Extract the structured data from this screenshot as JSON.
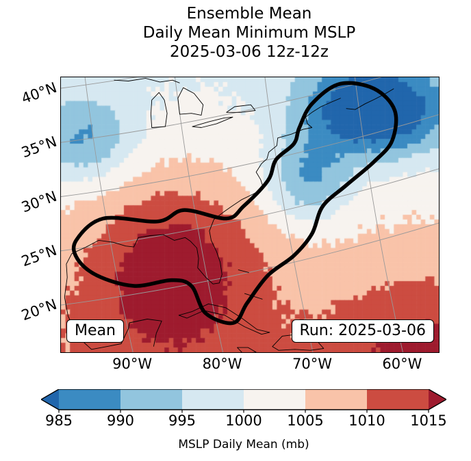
{
  "title_lines": [
    "Ensemble Mean",
    "Daily Mean Minimum MSLP",
    "2025-03-06 12z-12z"
  ],
  "boxes": {
    "mean": "Mean",
    "run": "Run: 2025-03-06"
  },
  "colorbar": {
    "label": "MSLP Daily Mean (mb)",
    "ticks": [
      "985",
      "990",
      "995",
      "1000",
      "1005",
      "1010",
      "1015"
    ],
    "extend": "both"
  },
  "chart_data": {
    "type": "heatmap",
    "subtype": "filled-contour-weather-map",
    "title": "Ensemble Mean Daily Mean Minimum MSLP",
    "valid_period": "2025-03-06 12z-12z",
    "run_date": "2025-03-06",
    "statistic": "Mean",
    "variable": "MSLP Daily Mean",
    "units": "mb",
    "colormap": "RdBu_r",
    "levels": [
      985,
      990,
      995,
      1000,
      1005,
      1010,
      1015
    ],
    "colors": [
      "#2166ac",
      "#3b8bc2",
      "#92c5de",
      "#d6e8f1",
      "#f7f3ef",
      "#f9c3a9",
      "#cc4c41",
      "#9e1b2e"
    ],
    "extent": {
      "lon_min": -98,
      "lon_max": -56,
      "lat_min": 18,
      "lat_max": 47
    },
    "grid_resolution_deg": 0.5,
    "lat_ticks": [
      {
        "value": 40,
        "label": "40°N"
      },
      {
        "value": 35,
        "label": "35°N"
      },
      {
        "value": 30,
        "label": "30°N"
      },
      {
        "value": 25,
        "label": "25°N"
      },
      {
        "value": 20,
        "label": "20°N"
      }
    ],
    "lon_ticks": [
      {
        "value": -90,
        "label": "90°W"
      },
      {
        "value": -80,
        "label": "80°W"
      },
      {
        "value": -70,
        "label": "70°W"
      },
      {
        "value": -60,
        "label": "60°W"
      }
    ],
    "field": {
      "base_mb": 1005.5,
      "lat_gradient_mb_per_deg": 0.35,
      "lat_gradient_ref": 30,
      "gaussians": [
        {
          "name": "subtropical-high",
          "lon": -85.5,
          "lat": 27.0,
          "amp": 13.0,
          "sx": 9.0,
          "sy": 9.0
        },
        {
          "name": "southeast-ridge",
          "lon": -58.0,
          "lat": 19.0,
          "amp": 7.0,
          "sx": 9.0,
          "sy": 7.0
        },
        {
          "name": "northeast-low",
          "lon": -63.0,
          "lat": 43.5,
          "amp": -25.0,
          "sx": 8.0,
          "sy": 5.0
        },
        {
          "name": "coastal-trough",
          "lon": -70.5,
          "lat": 36.0,
          "amp": -13.0,
          "sx": 4.5,
          "sy": 4.5
        },
        {
          "name": "northwest-low",
          "lon": -95.5,
          "lat": 40.5,
          "amp": -12.5,
          "sx": 5.5,
          "sy": 4.5
        }
      ]
    },
    "track_outline": {
      "name": "ensemble-mean-track-contour",
      "points": [
        [
          -96.3,
          29.8
        ],
        [
          -93.3,
          32.1
        ],
        [
          -87.2,
          31.8
        ],
        [
          -84.3,
          33.0
        ],
        [
          -79.6,
          32.1
        ],
        [
          -77.7,
          33.4
        ],
        [
          -75.0,
          36.1
        ],
        [
          -74.1,
          38.3
        ],
        [
          -72.1,
          40.0
        ],
        [
          -71.5,
          41.7
        ],
        [
          -70.1,
          44.2
        ],
        [
          -67.0,
          46.3
        ],
        [
          -63.2,
          45.8
        ],
        [
          -60.9,
          43.5
        ],
        [
          -61.2,
          40.3
        ],
        [
          -63.2,
          38.1
        ],
        [
          -66.3,
          35.6
        ],
        [
          -68.9,
          33.4
        ],
        [
          -70.1,
          30.5
        ],
        [
          -72.1,
          28.2
        ],
        [
          -75.0,
          26.1
        ],
        [
          -77.3,
          23.2
        ],
        [
          -78.8,
          21.1
        ],
        [
          -81.9,
          22.1
        ],
        [
          -83.5,
          25.0
        ],
        [
          -85.7,
          25.6
        ],
        [
          -89.9,
          25.0
        ],
        [
          -94.0,
          26.1
        ],
        [
          -96.2,
          27.9
        ]
      ]
    },
    "coastlines": [
      {
        "name": "gulf-and-east-coast",
        "closed": false,
        "pts": [
          [
            -97.3,
            25.9
          ],
          [
            -97.4,
            27.3
          ],
          [
            -96.8,
            28.4
          ],
          [
            -95.2,
            29.1
          ],
          [
            -93.8,
            29.8
          ],
          [
            -92.2,
            29.6
          ],
          [
            -90.8,
            29.2
          ],
          [
            -89.9,
            29.1
          ],
          [
            -89.4,
            30.1
          ],
          [
            -88.1,
            30.3
          ],
          [
            -86.6,
            30.4
          ],
          [
            -85.4,
            29.8
          ],
          [
            -84.2,
            30.1
          ],
          [
            -83.6,
            29.7
          ],
          [
            -82.9,
            29.0
          ],
          [
            -82.7,
            27.9
          ],
          [
            -82.8,
            26.9
          ],
          [
            -81.9,
            25.9
          ],
          [
            -81.1,
            25.2
          ],
          [
            -80.4,
            25.3
          ],
          [
            -80.1,
            26.2
          ],
          [
            -80.3,
            27.5
          ],
          [
            -80.7,
            28.6
          ],
          [
            -81.3,
            29.8
          ],
          [
            -81.5,
            30.8
          ],
          [
            -81.0,
            32.0
          ],
          [
            -79.9,
            32.8
          ],
          [
            -79.0,
            33.4
          ],
          [
            -77.9,
            34.1
          ],
          [
            -76.6,
            34.7
          ],
          [
            -75.5,
            35.3
          ],
          [
            -75.8,
            36.2
          ],
          [
            -76.3,
            37.0
          ],
          [
            -75.7,
            37.9
          ],
          [
            -75.1,
            38.4
          ],
          [
            -74.9,
            39.1
          ],
          [
            -74.0,
            39.8
          ],
          [
            -73.9,
            40.6
          ],
          [
            -72.4,
            41.0
          ],
          [
            -71.1,
            41.5
          ],
          [
            -70.1,
            41.7
          ],
          [
            -70.6,
            42.1
          ],
          [
            -70.8,
            42.8
          ],
          [
            -70.1,
            43.3
          ],
          [
            -69.1,
            43.9
          ],
          [
            -67.9,
            44.4
          ],
          [
            -66.9,
            44.8
          ]
        ]
      },
      {
        "name": "nova-scotia",
        "closed": false,
        "pts": [
          [
            -66.3,
            43.7
          ],
          [
            -65.3,
            43.6
          ],
          [
            -64.2,
            44.2
          ],
          [
            -63.1,
            44.7
          ],
          [
            -61.9,
            45.3
          ],
          [
            -61.0,
            45.8
          ]
        ]
      },
      {
        "name": "mexico-yucatan-coast",
        "closed": false,
        "pts": [
          [
            -97.3,
            25.9
          ],
          [
            -97.6,
            23.8
          ],
          [
            -97.2,
            21.8
          ],
          [
            -96.1,
            19.6
          ],
          [
            -94.6,
            18.3
          ],
          [
            -92.9,
            18.6
          ],
          [
            -91.3,
            18.9
          ],
          [
            -90.5,
            20.5
          ],
          [
            -90.4,
            21.1
          ],
          [
            -88.4,
            21.5
          ],
          [
            -86.8,
            21.3
          ],
          [
            -87.4,
            20.0
          ],
          [
            -87.7,
            18.6
          ]
        ]
      },
      {
        "name": "cuba",
        "closed": true,
        "pts": [
          [
            -84.9,
            21.9
          ],
          [
            -83.4,
            22.3
          ],
          [
            -81.6,
            23.1
          ],
          [
            -79.7,
            22.7
          ],
          [
            -77.9,
            21.6
          ],
          [
            -76.2,
            20.4
          ],
          [
            -74.8,
            20.1
          ],
          [
            -75.7,
            19.9
          ],
          [
            -77.6,
            20.7
          ],
          [
            -79.8,
            21.9
          ],
          [
            -82.1,
            22.4
          ],
          [
            -84.0,
            21.6
          ]
        ]
      },
      {
        "name": "hispaniola",
        "closed": true,
        "pts": [
          [
            -74.5,
            18.6
          ],
          [
            -73.4,
            19.7
          ],
          [
            -71.7,
            19.9
          ],
          [
            -70.0,
            19.7
          ],
          [
            -68.8,
            18.4
          ],
          [
            -70.3,
            18.2
          ],
          [
            -72.0,
            18.3
          ],
          [
            -73.8,
            18.2
          ]
        ]
      },
      {
        "name": "jamaica",
        "closed": true,
        "pts": [
          [
            -78.4,
            18.5
          ],
          [
            -77.2,
            18.5
          ],
          [
            -76.3,
            18.0
          ],
          [
            -77.8,
            17.9
          ]
        ]
      },
      {
        "name": "lake-michigan",
        "closed": true,
        "pts": [
          [
            -87.9,
            41.7
          ],
          [
            -86.4,
            41.8
          ],
          [
            -86.2,
            43.2
          ],
          [
            -86.5,
            44.6
          ],
          [
            -87.1,
            45.4
          ],
          [
            -87.9,
            44.6
          ],
          [
            -88.0,
            43.1
          ]
        ]
      },
      {
        "name": "lake-huron",
        "closed": true,
        "pts": [
          [
            -84.8,
            43.1
          ],
          [
            -83.5,
            43.2
          ],
          [
            -82.4,
            43.0
          ],
          [
            -82.2,
            44.1
          ],
          [
            -83.2,
            45.3
          ],
          [
            -84.4,
            45.9
          ],
          [
            -85.0,
            44.8
          ]
        ]
      },
      {
        "name": "lake-erie",
        "closed": true,
        "pts": [
          [
            -83.4,
            41.8
          ],
          [
            -81.6,
            42.3
          ],
          [
            -79.9,
            42.7
          ],
          [
            -78.9,
            42.8
          ],
          [
            -80.7,
            42.1
          ],
          [
            -82.4,
            41.7
          ]
        ]
      },
      {
        "name": "lake-ontario",
        "closed": true,
        "pts": [
          [
            -79.6,
            43.3
          ],
          [
            -78.0,
            43.3
          ],
          [
            -76.4,
            43.5
          ],
          [
            -76.9,
            44.1
          ],
          [
            -78.7,
            43.9
          ]
        ]
      },
      {
        "name": "lake-superior-south-shore",
        "closed": false,
        "pts": [
          [
            -92.1,
            46.7
          ],
          [
            -90.5,
            46.6
          ],
          [
            -88.6,
            46.9
          ],
          [
            -87.0,
            46.5
          ],
          [
            -85.6,
            46.7
          ],
          [
            -84.8,
            46.4
          ]
        ]
      },
      {
        "name": "bahamas-1",
        "closed": false,
        "pts": [
          [
            -78.3,
            26.7
          ],
          [
            -77.1,
            26.4
          ]
        ]
      },
      {
        "name": "bahamas-2",
        "closed": false,
        "pts": [
          [
            -77.6,
            24.2
          ],
          [
            -75.6,
            23.6
          ]
        ]
      }
    ],
    "annotations": [
      "Mean",
      "Run: 2025-03-06"
    ],
    "colorbar_label": "MSLP Daily Mean (mb)"
  }
}
